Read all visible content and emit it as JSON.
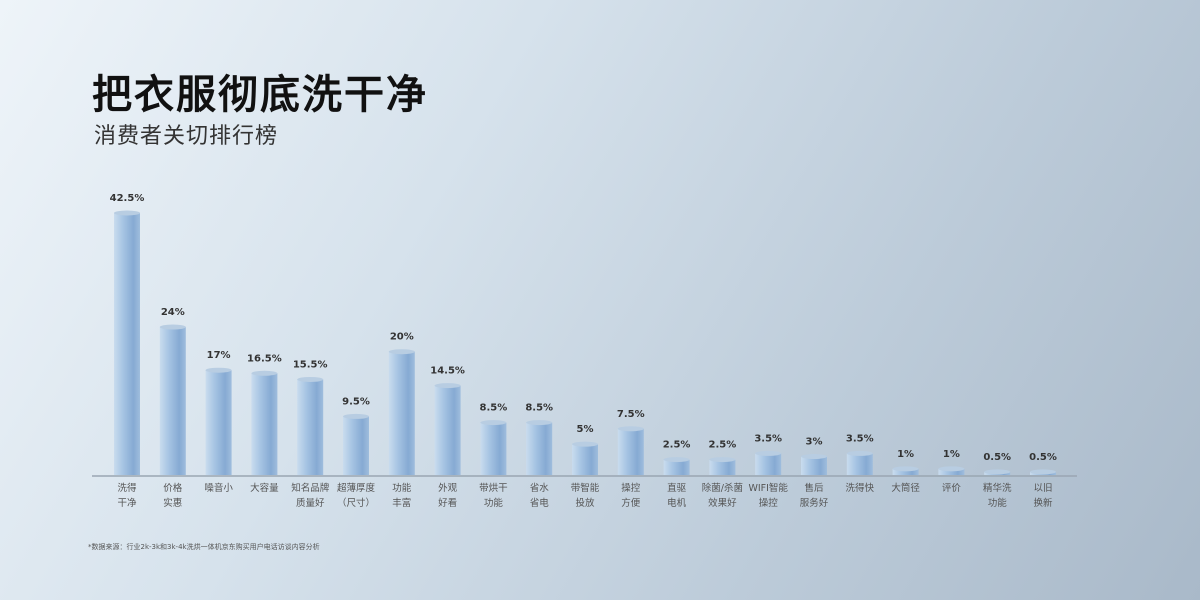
{
  "chart_data": {
    "type": "bar",
    "title": "把衣服彻底洗干净",
    "subtitle": "消费者关切排行榜",
    "categories": [
      "洗得\n干净",
      "价格\n实惠",
      "噪音小",
      "大容量",
      "知名品牌\n质量好",
      "超薄厚度\n（尺寸）",
      "功能\n丰富",
      "外观\n好看",
      "带烘干\n功能",
      "省水\n省电",
      "带智能\n投放",
      "操控\n方便",
      "直驱\n电机",
      "除菌/杀菌\n效果好",
      "WIFI智能\n操控",
      "售后\n服务好",
      "洗得快",
      "大筒径",
      "评价",
      "精华洗\n功能",
      "以旧\n换新"
    ],
    "values": [
      42.5,
      24,
      17,
      16.5,
      15.5,
      9.5,
      20,
      14.5,
      8.5,
      8.5,
      5,
      7.5,
      2.5,
      2.5,
      3.5,
      3,
      3.5,
      1,
      1,
      0.5,
      0.5
    ],
    "data_labels": [
      "42.5%",
      "24%",
      "17%",
      "16.5%",
      "15.5%",
      "9.5%",
      "20%",
      "14.5%",
      "8.5%",
      "8.5%",
      "5%",
      "7.5%",
      "2.5%",
      "2.5%",
      "3.5%",
      "3%",
      "3.5%",
      "1%",
      "1%",
      "0.5%",
      "0.5%"
    ],
    "ylim": [
      0,
      42.5
    ],
    "grid": false,
    "bar_color": "#8fb3d8"
  },
  "footnote": "*数据来源：行业2k-3k和3k-4k洗烘一体机京东购买用户电话访谈内容分析"
}
